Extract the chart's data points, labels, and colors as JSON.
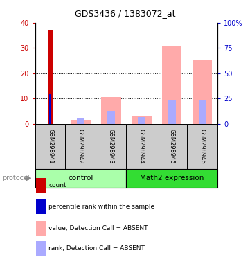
{
  "title": "GDS3436 / 1383072_at",
  "samples": [
    "GSM298941",
    "GSM298942",
    "GSM298943",
    "GSM298944",
    "GSM298945",
    "GSM298946"
  ],
  "group_labels": [
    "control",
    "Math2 expression"
  ],
  "group_colors_light": "#aaffaa",
  "group_colors_dark": "#33dd33",
  "bar_colors_absent_value": "#ffaaaa",
  "bar_colors_absent_rank": "#aaaaff",
  "bar_colors_count": "#cc0000",
  "bar_colors_percentile": "#0000cc",
  "absent_value": [
    0,
    1.5,
    10.5,
    3.0,
    30.5,
    25.5
  ],
  "absent_rank": [
    0,
    2.0,
    5.0,
    2.5,
    9.5,
    9.5
  ],
  "count_value": [
    37,
    0,
    0,
    0,
    0,
    0
  ],
  "percentile_value": [
    12,
    0,
    0,
    0,
    0,
    0
  ],
  "ylim_left": [
    0,
    40
  ],
  "ylim_right": [
    0,
    100
  ],
  "yticks_left": [
    0,
    10,
    20,
    30,
    40
  ],
  "yticks_right": [
    0,
    25,
    50,
    75,
    100
  ],
  "ytick_labels_right": [
    "0",
    "25",
    "50",
    "75",
    "100%"
  ],
  "sample_bg_color": "#cccccc",
  "left_axis_color": "#cc0000",
  "right_axis_color": "#0000cc",
  "legend_items": [
    {
      "color": "#cc0000",
      "label": "count"
    },
    {
      "color": "#0000cc",
      "label": "percentile rank within the sample"
    },
    {
      "color": "#ffaaaa",
      "label": "value, Detection Call = ABSENT"
    },
    {
      "color": "#aaaaff",
      "label": "rank, Detection Call = ABSENT"
    }
  ]
}
